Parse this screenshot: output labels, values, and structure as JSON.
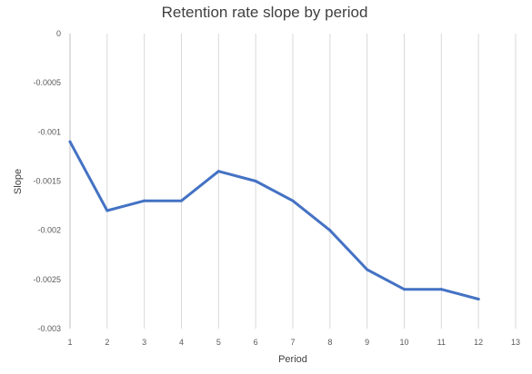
{
  "chart_data": {
    "type": "line",
    "title": "Retention rate slope by period",
    "xlabel": "Period",
    "ylabel": "Slope",
    "x_ticks": [
      "1",
      "2",
      "3",
      "4",
      "5",
      "6",
      "7",
      "8",
      "9",
      "10",
      "11",
      "12",
      "13"
    ],
    "y_ticks": [
      "0",
      "-0.0005",
      "-0.001",
      "-0.0015",
      "-0.002",
      "-0.0025",
      "-0.003"
    ],
    "xlim": [
      1,
      13
    ],
    "ylim": [
      -0.003,
      0
    ],
    "grid": "vertical",
    "series": [
      {
        "x": [
          1,
          2,
          3,
          4,
          5,
          6,
          7,
          8,
          9,
          10,
          11,
          12
        ],
        "values": [
          -0.0011,
          -0.0018,
          -0.0017,
          -0.0017,
          -0.0014,
          -0.0015,
          -0.0017,
          -0.002,
          -0.0024,
          -0.0026,
          -0.0026,
          -0.0027
        ],
        "color": "#4472C4"
      }
    ]
  }
}
